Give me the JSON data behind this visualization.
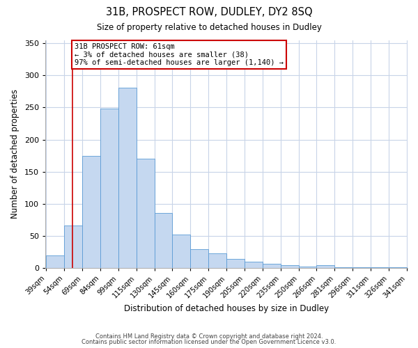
{
  "title": "31B, PROSPECT ROW, DUDLEY, DY2 8SQ",
  "subtitle": "Size of property relative to detached houses in Dudley",
  "xlabel": "Distribution of detached houses by size in Dudley",
  "ylabel": "Number of detached properties",
  "bar_labels": [
    "39sqm",
    "54sqm",
    "69sqm",
    "84sqm",
    "99sqm",
    "115sqm",
    "130sqm",
    "145sqm",
    "160sqm",
    "175sqm",
    "190sqm",
    "205sqm",
    "220sqm",
    "235sqm",
    "250sqm",
    "266sqm",
    "281sqm",
    "296sqm",
    "311sqm",
    "326sqm",
    "341sqm"
  ],
  "bar_values": [
    20,
    67,
    175,
    248,
    281,
    170,
    86,
    52,
    30,
    23,
    15,
    10,
    7,
    5,
    3,
    5,
    1,
    1,
    1,
    2
  ],
  "bar_color": "#c5d8f0",
  "bar_edge_color": "#5b9bd5",
  "ylim": [
    0,
    355
  ],
  "yticks": [
    0,
    50,
    100,
    150,
    200,
    250,
    300,
    350
  ],
  "annotation_line1": "31B PROSPECT ROW: 61sqm",
  "annotation_line2": "← 3% of detached houses are smaller (38)",
  "annotation_line3": "97% of semi-detached houses are larger (1,140) →",
  "annotation_box_color": "#ffffff",
  "annotation_border_color": "#cc0000",
  "footer1": "Contains HM Land Registry data © Crown copyright and database right 2024.",
  "footer2": "Contains public sector information licensed under the Open Government Licence v3.0.",
  "background_color": "#ffffff",
  "grid_color": "#c8d4e8"
}
